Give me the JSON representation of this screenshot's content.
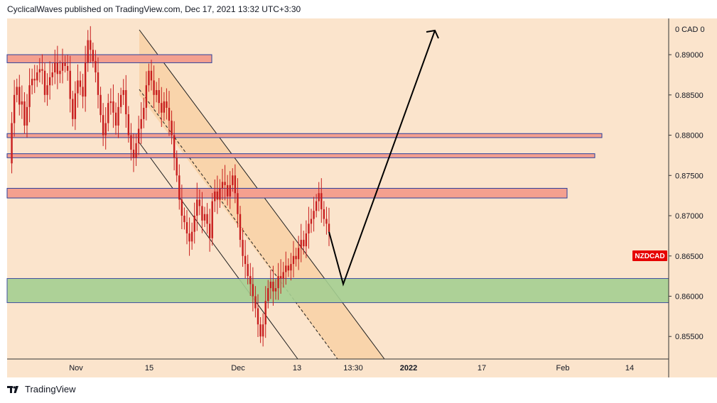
{
  "header": {
    "text": "CyclicalWaves published on TradingView.com, Dec 17, 2021 13:32 UTC+3:30"
  },
  "footer": {
    "brand": "TradingView"
  },
  "colors": {
    "chart_bg": "#fbe4cc",
    "channel_fill": "#f8cfa0",
    "resistance_fill": "#f4a08f",
    "support_fill": "#a5cf92",
    "zone_border": "#2b3f9c",
    "candle_color": "#c81e1e",
    "ticker_badge": "#e60000"
  },
  "chart_data": {
    "type": "candlestick",
    "symbol": "NZDCAD",
    "y_top_label": "0 CAD 0",
    "ylim": [
      0.8522,
      0.8945
    ],
    "y_ticks": [
      "0.89000",
      "0.88500",
      "0.88000",
      "0.87500",
      "0.87000",
      "0.86500",
      "0.86000",
      "0.85500"
    ],
    "x_ticks": [
      "Nov",
      "15",
      "Dec",
      "13",
      "13:30",
      "2022",
      "17",
      "Feb",
      "14"
    ],
    "zones": [
      {
        "kind": "resistance",
        "price_low": 0.889,
        "price_high": 0.89
      },
      {
        "kind": "resistance",
        "price_low": 0.8797,
        "price_high": 0.8802
      },
      {
        "kind": "resistance",
        "price_low": 0.8772,
        "price_high": 0.8777
      },
      {
        "kind": "resistance",
        "price_low": 0.8722,
        "price_high": 0.8734
      },
      {
        "kind": "support",
        "price_low": 0.8592,
        "price_high": 0.8622
      }
    ],
    "price_path": [
      0.8765,
      0.8815,
      0.885,
      0.886,
      0.8838,
      0.8842,
      0.8812,
      0.8835,
      0.8862,
      0.887,
      0.8868,
      0.8878,
      0.8882,
      0.888,
      0.885,
      0.8862,
      0.8872,
      0.8878,
      0.889,
      0.8876,
      0.888,
      0.889,
      0.8886,
      0.888,
      0.8845,
      0.882,
      0.8852,
      0.8868,
      0.886,
      0.8848,
      0.889,
      0.8918,
      0.8906,
      0.8892,
      0.8878,
      0.885,
      0.8825,
      0.88,
      0.8815,
      0.884,
      0.8842,
      0.8828,
      0.8812,
      0.8835,
      0.885,
      0.8856,
      0.8826,
      0.88,
      0.8782,
      0.8772,
      0.879,
      0.8808,
      0.882,
      0.8834,
      0.8862,
      0.888,
      0.8868,
      0.885,
      0.8856,
      0.884,
      0.8828,
      0.8842,
      0.8834,
      0.8818,
      0.88,
      0.8772,
      0.875,
      0.872,
      0.87,
      0.8692,
      0.8678,
      0.8668,
      0.868,
      0.87,
      0.872,
      0.8712,
      0.8694,
      0.8702,
      0.869,
      0.8672,
      0.8718,
      0.873,
      0.872,
      0.8734,
      0.8742,
      0.8738,
      0.8724,
      0.8738,
      0.875,
      0.8728,
      0.8702,
      0.867,
      0.865,
      0.864,
      0.8625,
      0.8615,
      0.86,
      0.8585,
      0.8565,
      0.855,
      0.8565,
      0.8594,
      0.861,
      0.8618,
      0.8606,
      0.861,
      0.8625,
      0.8622,
      0.863,
      0.8638,
      0.8632,
      0.864,
      0.865,
      0.8646,
      0.866,
      0.867,
      0.8662,
      0.8678,
      0.869,
      0.8696,
      0.8706,
      0.8718,
      0.8728,
      0.8708,
      0.8696,
      0.869,
      0.868
    ],
    "projection_points": [
      0.868,
      0.8615,
      0.893
    ]
  }
}
